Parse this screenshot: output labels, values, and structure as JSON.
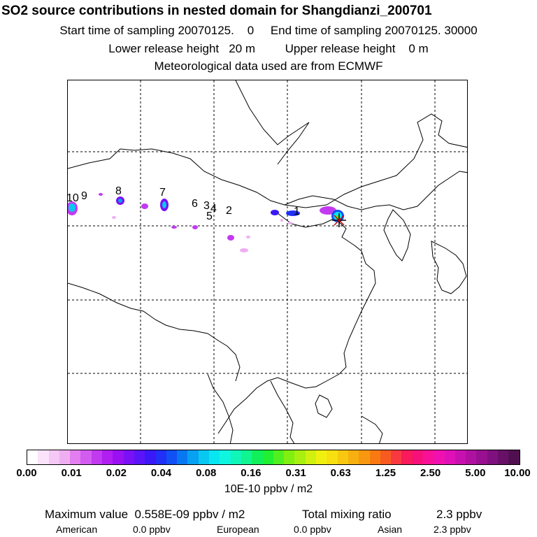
{
  "title": "SO2 source contributions in nested domain for Shangdianzi_200701",
  "sampling": {
    "start_label": "Start time of sampling 20070125.",
    "start_value": "0",
    "end_label": "End time of sampling 20070125. 30000"
  },
  "release": {
    "lower_label": "Lower release height",
    "lower_value": "20 m",
    "upper_label": "Upper release height",
    "upper_value": "0 m"
  },
  "met": "Meteorological data used are from ECMWF",
  "map": {
    "station_marker": "asterisk-station-icon",
    "labels": [
      "1",
      "2",
      "3",
      "4",
      "5",
      "6",
      "7",
      "8",
      "9",
      "10"
    ]
  },
  "colorbar": {
    "ticks": [
      "0.00",
      "0.01",
      "0.02",
      "0.04",
      "0.08",
      "0.16",
      "0.31",
      "0.63",
      "1.25",
      "2.50",
      "5.00",
      "10.00"
    ],
    "units": "10E-10 ppbv / m2",
    "colors": [
      "#ffffff",
      "#fbe3fb",
      "#f5c8f5",
      "#efaef2",
      "#e27ef0",
      "#d35cf0",
      "#c23af0",
      "#b01ef2",
      "#9a10f2",
      "#7a10f5",
      "#5a14f7",
      "#3a18f7",
      "#2030f7",
      "#1050f5",
      "#0878f2",
      "#08a0f2",
      "#08c8f2",
      "#08e6f2",
      "#10f5e0",
      "#10f5b8",
      "#10f590",
      "#10f05a",
      "#20f030",
      "#50f020",
      "#80f010",
      "#a8f010",
      "#d0f010",
      "#f0f010",
      "#f8e010",
      "#f8c810",
      "#f8b010",
      "#f89810",
      "#f87a10",
      "#f85a20",
      "#f83a40",
      "#f81a5a",
      "#f8107a",
      "#f81098",
      "#f010b0",
      "#e010b8",
      "#c810b0",
      "#b010a0",
      "#981090",
      "#801080",
      "#681068",
      "#501050"
    ]
  },
  "stats": {
    "max_label": "Maximum value",
    "max_value": "0.558E-09 ppbv / m2",
    "total_label": "Total mixing ratio",
    "total_value": "2.3 ppbv",
    "american_label": "American",
    "american_value": "0.0 ppbv",
    "european_label": "European",
    "european_value": "0.0 ppbv",
    "asian_label": "Asian",
    "asian_value": "2.3 ppbv"
  }
}
